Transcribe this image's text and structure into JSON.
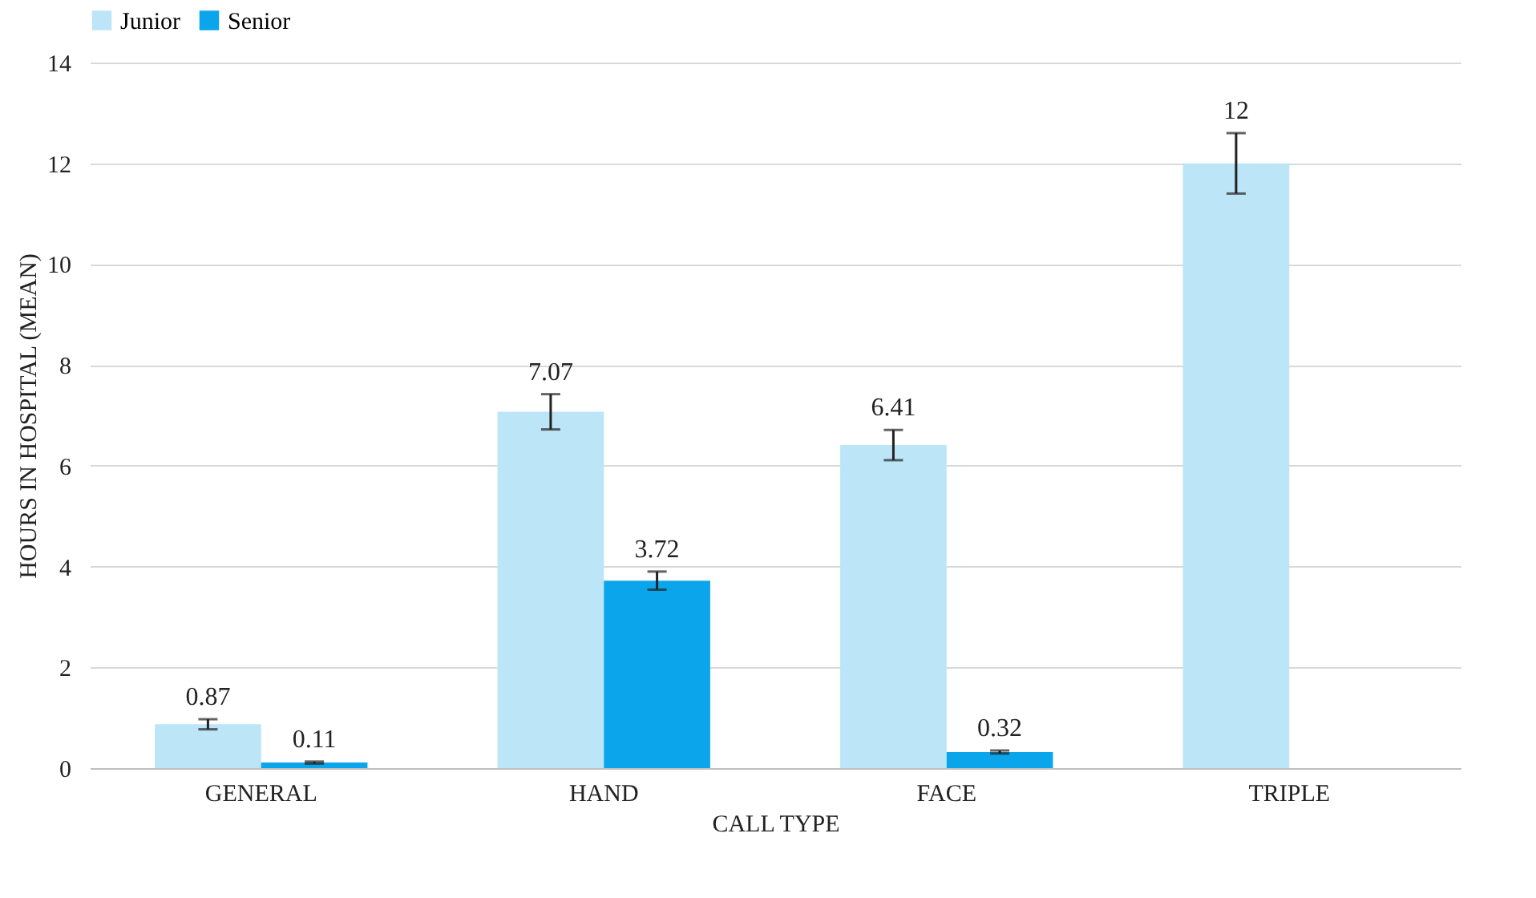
{
  "chart_data": {
    "type": "bar",
    "xlabel": "CALL TYPE",
    "ylabel": "HOURS IN HOSPITAL (MEAN)",
    "categories": [
      "GENERAL",
      "HAND",
      "FACE",
      "TRIPLE"
    ],
    "series": [
      {
        "name": "Junior",
        "color": "#bde5f8",
        "values": [
          0.87,
          7.07,
          6.41,
          12
        ],
        "errors": [
          0.1,
          0.35,
          0.3,
          0.6
        ],
        "value_labels": [
          "0.87",
          "7.07",
          "6.41",
          "12"
        ]
      },
      {
        "name": "Senior",
        "color": "#0ba5ec",
        "values": [
          0.11,
          3.72,
          0.32,
          0
        ],
        "errors": [
          0.02,
          0.18,
          0.03,
          null
        ],
        "value_labels": [
          "0.11",
          "3.72",
          "0.32",
          null
        ]
      }
    ],
    "ylim": [
      0,
      14
    ],
    "yticks": [
      0,
      2,
      4,
      6,
      8,
      10,
      12,
      14
    ],
    "grid": "y",
    "legend": "top"
  }
}
